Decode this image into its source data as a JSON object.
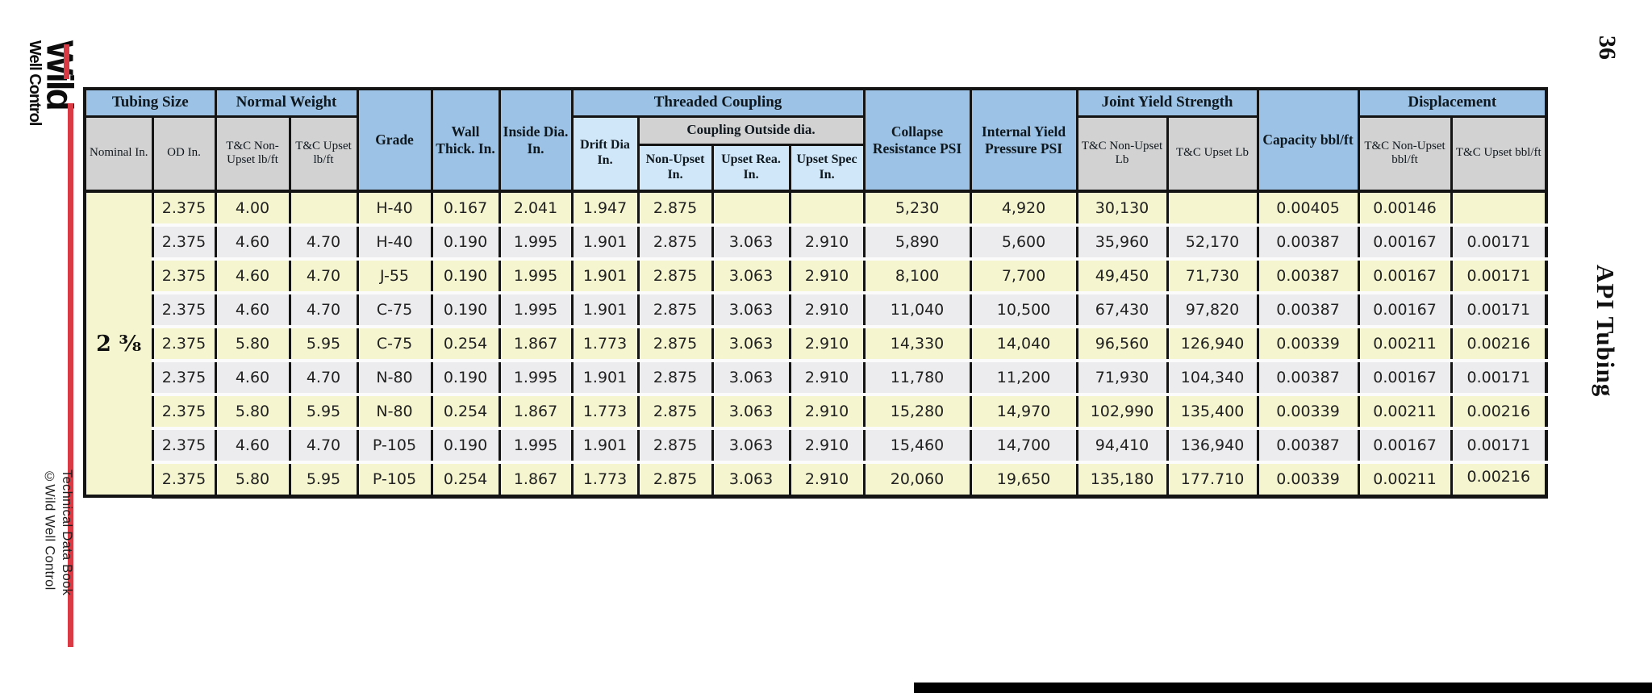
{
  "page": {
    "page_number": "36",
    "side_title": "API Tubing",
    "logo": {
      "line1": "Wild",
      "line2": "Well Control"
    },
    "footer": {
      "line1": "Technical Data Book",
      "line2": "©Wild Well Control"
    }
  },
  "colors": {
    "header_blue": "#9cc3e5",
    "header_light_blue": "#cfe7f8",
    "header_gray": "#d2d2d2",
    "row_yellow": "#f5f5cf",
    "row_gray": "#ececef",
    "nominal_blue": "#cae6f7",
    "border_black": "#141414",
    "accent_red": "#d93a43",
    "bar_black": "#000000"
  },
  "table": {
    "header": {
      "tubing_size": "Tubing Size",
      "normal_weight": "Normal Weight",
      "grade": "Grade",
      "wall_thick": "Wall Thick. In.",
      "inside_dia": "Inside Dia. In.",
      "threaded_coupling": "Threaded Coupling",
      "collapse": "Collapse Resistance PSI",
      "internal_yield": "Internal Yield Pressure PSI",
      "joint_yield": "Joint Yield Strength",
      "capacity": "Capacity bbl/ft",
      "displacement": "Displacement",
      "nominal_in": "Nominal In.",
      "od_in": "OD In.",
      "tc_nonupset_lbft": "T&C Non-Upset lb/ft",
      "tc_upset_lbft": "T&C Upset lb/ft",
      "drift_dia": "Drift Dia In.",
      "coupling_od": "Coupling Outside dia.",
      "nonupset_in": "Non-Upset In.",
      "upset_rea_in": "Upset Rea. In.",
      "upset_spec_in": "Upset Spec In.",
      "tc_nonupset_lb": "T&C Non-Upset Lb",
      "tc_upset_lb": "T&C Upset Lb",
      "tc_nonupset_bblft": "T&C Non-Upset bbl/ft",
      "tc_upset_bblft": "T&C Upset bbl/ft"
    },
    "nominal_size": "2 ³⁄₈",
    "rows": [
      [
        "2.375",
        "4.00",
        "",
        "H-40",
        "0.167",
        "2.041",
        "1.947",
        "2.875",
        "",
        "",
        "5,230",
        "4,920",
        "30,130",
        "",
        "0.00405",
        "0.00146",
        ""
      ],
      [
        "2.375",
        "4.60",
        "4.70",
        "H-40",
        "0.190",
        "1.995",
        "1.901",
        "2.875",
        "3.063",
        "2.910",
        "5,890",
        "5,600",
        "35,960",
        "52,170",
        "0.00387",
        "0.00167",
        "0.00171"
      ],
      [
        "2.375",
        "4.60",
        "4.70",
        "J-55",
        "0.190",
        "1.995",
        "1.901",
        "2.875",
        "3.063",
        "2.910",
        "8,100",
        "7,700",
        "49,450",
        "71,730",
        "0.00387",
        "0.00167",
        "0.00171"
      ],
      [
        "2.375",
        "4.60",
        "4.70",
        "C-75",
        "0.190",
        "1.995",
        "1.901",
        "2.875",
        "3.063",
        "2.910",
        "11,040",
        "10,500",
        "67,430",
        "97,820",
        "0.00387",
        "0.00167",
        "0.00171"
      ],
      [
        "2.375",
        "5.80",
        "5.95",
        "C-75",
        "0.254",
        "1.867",
        "1.773",
        "2.875",
        "3.063",
        "2.910",
        "14,330",
        "14,040",
        "96,560",
        "126,940",
        "0.00339",
        "0.00211",
        "0.00216"
      ],
      [
        "2.375",
        "4.60",
        "4.70",
        "N-80",
        "0.190",
        "1.995",
        "1.901",
        "2.875",
        "3.063",
        "2.910",
        "11,780",
        "11,200",
        "71,930",
        "104,340",
        "0.00387",
        "0.00167",
        "0.00171"
      ],
      [
        "2.375",
        "5.80",
        "5.95",
        "N-80",
        "0.254",
        "1.867",
        "1.773",
        "2.875",
        "3.063",
        "2.910",
        "15,280",
        "14,970",
        "102,990",
        "135,400",
        "0.00339",
        "0.00211",
        "0.00216"
      ],
      [
        "2.375",
        "4.60",
        "4.70",
        "P-105",
        "0.190",
        "1.995",
        "1.901",
        "2.875",
        "3.063",
        "2.910",
        "15,460",
        "14,700",
        "94,410",
        "136,940",
        "0.00387",
        "0.00167",
        "0.00171"
      ],
      [
        "2.375",
        "5.80",
        "5.95",
        "P-105",
        "0.254",
        "1.867",
        "1.773",
        "2.875",
        "3.063",
        "2.910",
        "20,060",
        "19,650",
        "135,180",
        "177.710",
        "0.00339",
        "0.00211",
        "0.00216"
      ]
    ]
  }
}
